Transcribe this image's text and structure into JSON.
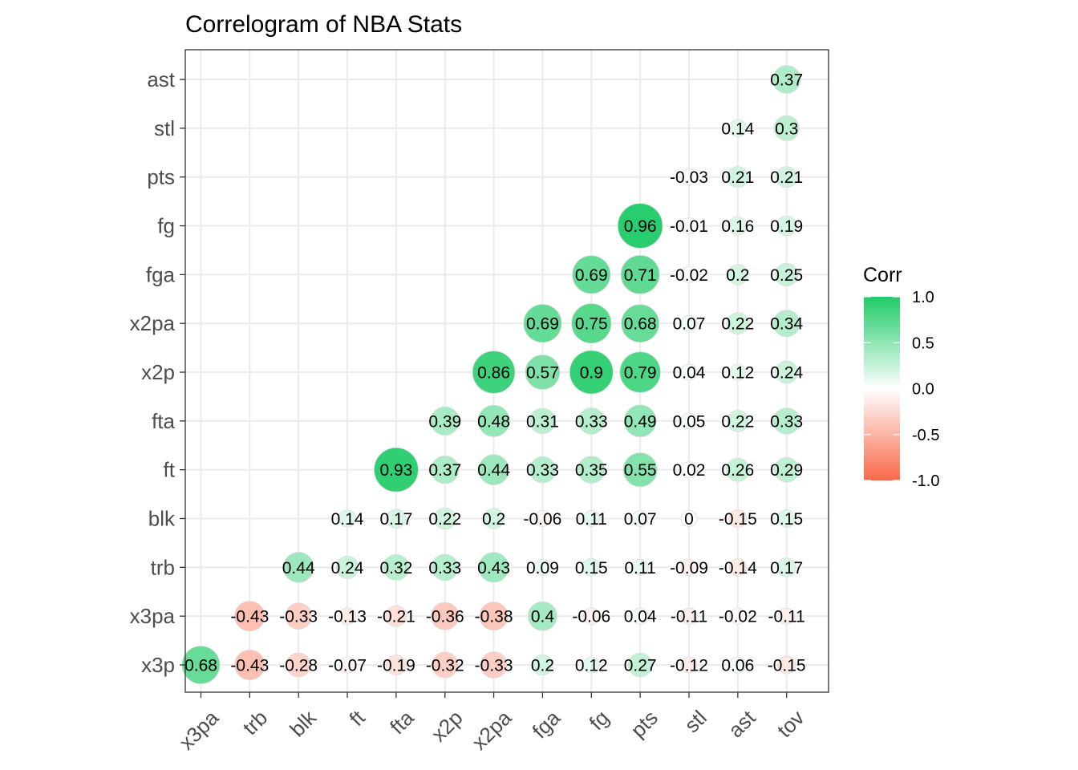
{
  "chart_data": {
    "type": "heatmap",
    "title": "Correlogram of NBA Stats",
    "x_categories": [
      "x3pa",
      "trb",
      "blk",
      "ft",
      "fta",
      "x2p",
      "x2pa",
      "fga",
      "fg",
      "pts",
      "stl",
      "ast",
      "tov"
    ],
    "y_categories": [
      "x3p",
      "x3pa",
      "trb",
      "blk",
      "ft",
      "fta",
      "x2p",
      "x2pa",
      "fga",
      "fg",
      "pts",
      "stl",
      "ast"
    ],
    "cells": [
      {
        "y": "x3p",
        "x": "x3pa",
        "value": 0.68,
        "label": "0.68"
      },
      {
        "y": "x3p",
        "x": "trb",
        "value": -0.43,
        "label": "-0.43"
      },
      {
        "y": "x3p",
        "x": "blk",
        "value": -0.28,
        "label": "-0.28"
      },
      {
        "y": "x3p",
        "x": "ft",
        "value": -0.07,
        "label": "-0.07"
      },
      {
        "y": "x3p",
        "x": "fta",
        "value": -0.19,
        "label": "-0.19"
      },
      {
        "y": "x3p",
        "x": "x2p",
        "value": -0.32,
        "label": "-0.32"
      },
      {
        "y": "x3p",
        "x": "x2pa",
        "value": -0.33,
        "label": "-0.33"
      },
      {
        "y": "x3p",
        "x": "fga",
        "value": 0.2,
        "label": "0.2"
      },
      {
        "y": "x3p",
        "x": "fg",
        "value": 0.12,
        "label": "0.12"
      },
      {
        "y": "x3p",
        "x": "pts",
        "value": 0.27,
        "label": "0.27"
      },
      {
        "y": "x3p",
        "x": "stl",
        "value": -0.12,
        "label": "-0.12"
      },
      {
        "y": "x3p",
        "x": "ast",
        "value": 0.06,
        "label": "0.06"
      },
      {
        "y": "x3p",
        "x": "tov",
        "value": -0.15,
        "label": "-0.15"
      },
      {
        "y": "x3pa",
        "x": "trb",
        "value": -0.43,
        "label": "-0.43"
      },
      {
        "y": "x3pa",
        "x": "blk",
        "value": -0.33,
        "label": "-0.33"
      },
      {
        "y": "x3pa",
        "x": "ft",
        "value": -0.13,
        "label": "-0.13"
      },
      {
        "y": "x3pa",
        "x": "fta",
        "value": -0.21,
        "label": "-0.21"
      },
      {
        "y": "x3pa",
        "x": "x2p",
        "value": -0.36,
        "label": "-0.36"
      },
      {
        "y": "x3pa",
        "x": "x2pa",
        "value": -0.38,
        "label": "-0.38"
      },
      {
        "y": "x3pa",
        "x": "fga",
        "value": 0.4,
        "label": "0.4"
      },
      {
        "y": "x3pa",
        "x": "fg",
        "value": -0.06,
        "label": "-0.06"
      },
      {
        "y": "x3pa",
        "x": "pts",
        "value": 0.04,
        "label": "0.04"
      },
      {
        "y": "x3pa",
        "x": "stl",
        "value": -0.11,
        "label": "-0.11"
      },
      {
        "y": "x3pa",
        "x": "ast",
        "value": -0.02,
        "label": "-0.02"
      },
      {
        "y": "x3pa",
        "x": "tov",
        "value": -0.11,
        "label": "-0.11"
      },
      {
        "y": "trb",
        "x": "blk",
        "value": 0.44,
        "label": "0.44"
      },
      {
        "y": "trb",
        "x": "ft",
        "value": 0.24,
        "label": "0.24"
      },
      {
        "y": "trb",
        "x": "fta",
        "value": 0.32,
        "label": "0.32"
      },
      {
        "y": "trb",
        "x": "x2p",
        "value": 0.33,
        "label": "0.33"
      },
      {
        "y": "trb",
        "x": "x2pa",
        "value": 0.43,
        "label": "0.43"
      },
      {
        "y": "trb",
        "x": "fga",
        "value": 0.09,
        "label": "0.09"
      },
      {
        "y": "trb",
        "x": "fg",
        "value": 0.15,
        "label": "0.15"
      },
      {
        "y": "trb",
        "x": "pts",
        "value": 0.11,
        "label": "0.11"
      },
      {
        "y": "trb",
        "x": "stl",
        "value": -0.09,
        "label": "-0.09"
      },
      {
        "y": "trb",
        "x": "ast",
        "value": -0.14,
        "label": "-0.14"
      },
      {
        "y": "trb",
        "x": "tov",
        "value": 0.17,
        "label": "0.17"
      },
      {
        "y": "blk",
        "x": "ft",
        "value": 0.14,
        "label": "0.14"
      },
      {
        "y": "blk",
        "x": "fta",
        "value": 0.17,
        "label": "0.17"
      },
      {
        "y": "blk",
        "x": "x2p",
        "value": 0.22,
        "label": "0.22"
      },
      {
        "y": "blk",
        "x": "x2pa",
        "value": 0.2,
        "label": "0.2"
      },
      {
        "y": "blk",
        "x": "fga",
        "value": -0.06,
        "label": "-0.06"
      },
      {
        "y": "blk",
        "x": "fg",
        "value": 0.11,
        "label": "0.11"
      },
      {
        "y": "blk",
        "x": "pts",
        "value": 0.07,
        "label": "0.07"
      },
      {
        "y": "blk",
        "x": "stl",
        "value": 0,
        "label": "0"
      },
      {
        "y": "blk",
        "x": "ast",
        "value": -0.15,
        "label": "-0.15"
      },
      {
        "y": "blk",
        "x": "tov",
        "value": 0.15,
        "label": "0.15"
      },
      {
        "y": "ft",
        "x": "fta",
        "value": 0.93,
        "label": "0.93"
      },
      {
        "y": "ft",
        "x": "x2p",
        "value": 0.37,
        "label": "0.37"
      },
      {
        "y": "ft",
        "x": "x2pa",
        "value": 0.44,
        "label": "0.44"
      },
      {
        "y": "ft",
        "x": "fga",
        "value": 0.33,
        "label": "0.33"
      },
      {
        "y": "ft",
        "x": "fg",
        "value": 0.35,
        "label": "0.35"
      },
      {
        "y": "ft",
        "x": "pts",
        "value": 0.55,
        "label": "0.55"
      },
      {
        "y": "ft",
        "x": "stl",
        "value": 0.02,
        "label": "0.02"
      },
      {
        "y": "ft",
        "x": "ast",
        "value": 0.26,
        "label": "0.26"
      },
      {
        "y": "ft",
        "x": "tov",
        "value": 0.29,
        "label": "0.29"
      },
      {
        "y": "fta",
        "x": "x2p",
        "value": 0.39,
        "label": "0.39"
      },
      {
        "y": "fta",
        "x": "x2pa",
        "value": 0.48,
        "label": "0.48"
      },
      {
        "y": "fta",
        "x": "fga",
        "value": 0.31,
        "label": "0.31"
      },
      {
        "y": "fta",
        "x": "fg",
        "value": 0.33,
        "label": "0.33"
      },
      {
        "y": "fta",
        "x": "pts",
        "value": 0.49,
        "label": "0.49"
      },
      {
        "y": "fta",
        "x": "stl",
        "value": 0.05,
        "label": "0.05"
      },
      {
        "y": "fta",
        "x": "ast",
        "value": 0.22,
        "label": "0.22"
      },
      {
        "y": "fta",
        "x": "tov",
        "value": 0.33,
        "label": "0.33"
      },
      {
        "y": "x2p",
        "x": "x2pa",
        "value": 0.86,
        "label": "0.86"
      },
      {
        "y": "x2p",
        "x": "fga",
        "value": 0.57,
        "label": "0.57"
      },
      {
        "y": "x2p",
        "x": "fg",
        "value": 0.9,
        "label": "0.9"
      },
      {
        "y": "x2p",
        "x": "pts",
        "value": 0.79,
        "label": "0.79"
      },
      {
        "y": "x2p",
        "x": "stl",
        "value": 0.04,
        "label": "0.04"
      },
      {
        "y": "x2p",
        "x": "ast",
        "value": 0.12,
        "label": "0.12"
      },
      {
        "y": "x2p",
        "x": "tov",
        "value": 0.24,
        "label": "0.24"
      },
      {
        "y": "x2pa",
        "x": "fga",
        "value": 0.69,
        "label": "0.69"
      },
      {
        "y": "x2pa",
        "x": "fg",
        "value": 0.75,
        "label": "0.75"
      },
      {
        "y": "x2pa",
        "x": "pts",
        "value": 0.68,
        "label": "0.68"
      },
      {
        "y": "x2pa",
        "x": "stl",
        "value": 0.07,
        "label": "0.07"
      },
      {
        "y": "x2pa",
        "x": "ast",
        "value": 0.22,
        "label": "0.22"
      },
      {
        "y": "x2pa",
        "x": "tov",
        "value": 0.34,
        "label": "0.34"
      },
      {
        "y": "fga",
        "x": "fg",
        "value": 0.69,
        "label": "0.69"
      },
      {
        "y": "fga",
        "x": "pts",
        "value": 0.71,
        "label": "0.71"
      },
      {
        "y": "fga",
        "x": "stl",
        "value": -0.02,
        "label": "-0.02"
      },
      {
        "y": "fga",
        "x": "ast",
        "value": 0.2,
        "label": "0.2"
      },
      {
        "y": "fga",
        "x": "tov",
        "value": 0.25,
        "label": "0.25"
      },
      {
        "y": "fg",
        "x": "pts",
        "value": 0.96,
        "label": "0.96"
      },
      {
        "y": "fg",
        "x": "stl",
        "value": -0.01,
        "label": "-0.01"
      },
      {
        "y": "fg",
        "x": "ast",
        "value": 0.16,
        "label": "0.16"
      },
      {
        "y": "fg",
        "x": "tov",
        "value": 0.19,
        "label": "0.19"
      },
      {
        "y": "pts",
        "x": "stl",
        "value": -0.03,
        "label": "-0.03"
      },
      {
        "y": "pts",
        "x": "ast",
        "value": 0.21,
        "label": "0.21"
      },
      {
        "y": "pts",
        "x": "tov",
        "value": 0.21,
        "label": "0.21"
      },
      {
        "y": "stl",
        "x": "ast",
        "value": 0.14,
        "label": "0.14"
      },
      {
        "y": "stl",
        "x": "tov",
        "value": 0.3,
        "label": "0.3"
      },
      {
        "y": "ast",
        "x": "tov",
        "value": 0.37,
        "label": "0.37"
      }
    ],
    "value_range": [
      -1,
      1
    ],
    "grid": true,
    "legend": {
      "title": "Corr",
      "position": "right",
      "ticks": [
        "1.0",
        "0.5",
        "0.0",
        "-0.5",
        "-1.0"
      ],
      "tick_values": [
        1.0,
        0.5,
        0.0,
        -0.5,
        -1.0
      ],
      "colors": {
        "low": "#F8694A",
        "mid": "#FFFFFF",
        "high": "#1FCB67"
      }
    }
  }
}
